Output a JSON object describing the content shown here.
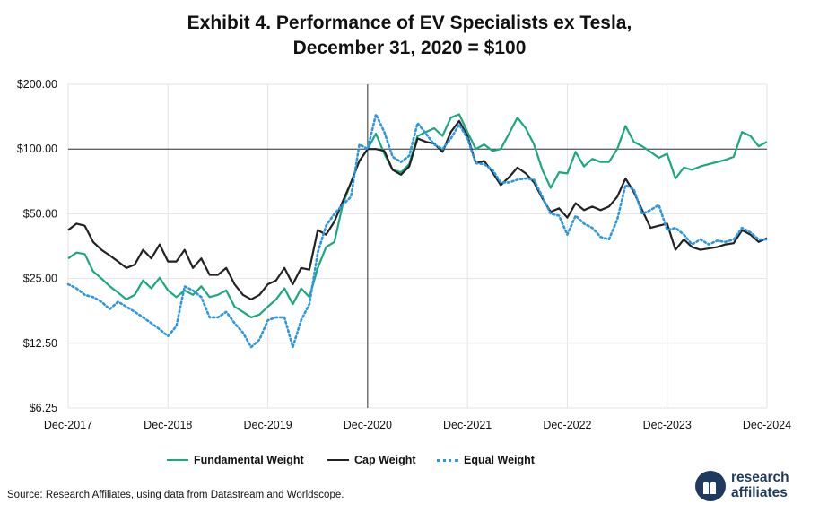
{
  "chart_data": {
    "type": "line",
    "title": "Exhibit 4. Performance of EV Specialists ex Tesla,",
    "subtitle": "December 31, 2020 = $100",
    "y_scale": "log2",
    "ylim": [
      6.25,
      200
    ],
    "y_ticks": [
      "$200.00",
      "$100.00",
      "$50.00",
      "$25.00",
      "$12.50",
      "$6.25"
    ],
    "y_tick_values": [
      200,
      100,
      50,
      25,
      12.5,
      6.25
    ],
    "x_ticks": [
      "Dec-2017",
      "Dec-2018",
      "Dec-2019",
      "Dec-2020",
      "Dec-2021",
      "Dec-2022",
      "Dec-2023",
      "Dec-2024"
    ],
    "x_range": [
      "Dec-2017",
      "Dec-2024"
    ],
    "x_unit": "months",
    "reference_lines": {
      "vertical_at": "Dec-2020",
      "horizontal_at": 100
    },
    "grid": true,
    "legend_position": "bottom",
    "series": [
      {
        "name": "Fundamental Weight",
        "color": "#1aa87e",
        "style": "solid",
        "points": [
          [
            0,
            31
          ],
          [
            1,
            33
          ],
          [
            2,
            32.5
          ],
          [
            3,
            27
          ],
          [
            4,
            25
          ],
          [
            5,
            23
          ],
          [
            6,
            21.5
          ],
          [
            7,
            20
          ],
          [
            8,
            21
          ],
          [
            9,
            24.5
          ],
          [
            10,
            22.5
          ],
          [
            11,
            25.2
          ],
          [
            12,
            22
          ],
          [
            13,
            20.5
          ],
          [
            14,
            22
          ],
          [
            15,
            21
          ],
          [
            16,
            23
          ],
          [
            17,
            20.5
          ],
          [
            18,
            21
          ],
          [
            19,
            22
          ],
          [
            20,
            18.5
          ],
          [
            21,
            17.5
          ],
          [
            22,
            16.5
          ],
          [
            23,
            17
          ],
          [
            24,
            18.5
          ],
          [
            25,
            20
          ],
          [
            26,
            22.5
          ],
          [
            27,
            19
          ],
          [
            28,
            22.5
          ],
          [
            29,
            20.5
          ],
          [
            30,
            28
          ],
          [
            31,
            35
          ],
          [
            32,
            37
          ],
          [
            33,
            55
          ],
          [
            34,
            70
          ],
          [
            35,
            88
          ],
          [
            36,
            100
          ],
          [
            37,
            118
          ],
          [
            38,
            95
          ],
          [
            39,
            80
          ],
          [
            40,
            78
          ],
          [
            41,
            85
          ],
          [
            42,
            115
          ],
          [
            43,
            120
          ],
          [
            44,
            125
          ],
          [
            45,
            115
          ],
          [
            46,
            140
          ],
          [
            47,
            145
          ],
          [
            48,
            120
          ],
          [
            49,
            100
          ],
          [
            50,
            105
          ],
          [
            51,
            98
          ],
          [
            52,
            100
          ],
          [
            53,
            118
          ],
          [
            54,
            140
          ],
          [
            55,
            125
          ],
          [
            56,
            105
          ],
          [
            57,
            80
          ],
          [
            58,
            66
          ],
          [
            59,
            78
          ],
          [
            60,
            77
          ],
          [
            61,
            97
          ],
          [
            62,
            83
          ],
          [
            63,
            90
          ],
          [
            64,
            87
          ],
          [
            65,
            87
          ],
          [
            66,
            100
          ],
          [
            67,
            128
          ],
          [
            68,
            108
          ],
          [
            69,
            103
          ],
          [
            70,
            97
          ],
          [
            71,
            91
          ],
          [
            72,
            95
          ],
          [
            73,
            73
          ],
          [
            74,
            82
          ],
          [
            75,
            80
          ],
          [
            76,
            83
          ],
          [
            77,
            85
          ],
          [
            78,
            87
          ],
          [
            79,
            89
          ],
          [
            80,
            92
          ],
          [
            81,
            120
          ],
          [
            82,
            115
          ],
          [
            83,
            103
          ],
          [
            84,
            108
          ]
        ]
      },
      {
        "name": "Cap Weight",
        "color": "#222222",
        "style": "solid",
        "points": [
          [
            0,
            42
          ],
          [
            1,
            45
          ],
          [
            2,
            44
          ],
          [
            3,
            37
          ],
          [
            4,
            34
          ],
          [
            5,
            32
          ],
          [
            6,
            30
          ],
          [
            7,
            28
          ],
          [
            8,
            29
          ],
          [
            9,
            34
          ],
          [
            10,
            31
          ],
          [
            11,
            36
          ],
          [
            12,
            30
          ],
          [
            13,
            30
          ],
          [
            14,
            34
          ],
          [
            15,
            28
          ],
          [
            16,
            31
          ],
          [
            17,
            26
          ],
          [
            18,
            26
          ],
          [
            19,
            28
          ],
          [
            20,
            23.5
          ],
          [
            21,
            21
          ],
          [
            22,
            20
          ],
          [
            23,
            21
          ],
          [
            24,
            23.5
          ],
          [
            25,
            24.5
          ],
          [
            26,
            28
          ],
          [
            27,
            23.5
          ],
          [
            28,
            28
          ],
          [
            29,
            27.5
          ],
          [
            30,
            42
          ],
          [
            31,
            40
          ],
          [
            32,
            46
          ],
          [
            33,
            57
          ],
          [
            34,
            70
          ],
          [
            35,
            88
          ],
          [
            36,
            100
          ],
          [
            37,
            100
          ],
          [
            38,
            98
          ],
          [
            39,
            80
          ],
          [
            40,
            76
          ],
          [
            41,
            83
          ],
          [
            42,
            112
          ],
          [
            43,
            108
          ],
          [
            44,
            106
          ],
          [
            45,
            97
          ],
          [
            46,
            120
          ],
          [
            47,
            135
          ],
          [
            48,
            115
          ],
          [
            49,
            86
          ],
          [
            50,
            88
          ],
          [
            51,
            78
          ],
          [
            52,
            68
          ],
          [
            53,
            74
          ],
          [
            54,
            82
          ],
          [
            55,
            77
          ],
          [
            56,
            70
          ],
          [
            57,
            59
          ],
          [
            58,
            51
          ],
          [
            59,
            53
          ],
          [
            60,
            48
          ],
          [
            61,
            56
          ],
          [
            62,
            52
          ],
          [
            63,
            54
          ],
          [
            64,
            52
          ],
          [
            65,
            54
          ],
          [
            66,
            60
          ],
          [
            67,
            73
          ],
          [
            68,
            63
          ],
          [
            69,
            52
          ],
          [
            70,
            43
          ],
          [
            71,
            44
          ],
          [
            72,
            45
          ],
          [
            73,
            34
          ],
          [
            74,
            38
          ],
          [
            75,
            35
          ],
          [
            76,
            34
          ],
          [
            77,
            34.5
          ],
          [
            78,
            35
          ],
          [
            79,
            36
          ],
          [
            80,
            36.5
          ],
          [
            81,
            42
          ],
          [
            82,
            40
          ],
          [
            83,
            37
          ],
          [
            84,
            38.5
          ]
        ]
      },
      {
        "name": "Equal Weight",
        "color": "#2f97dd",
        "style": "dotted",
        "points": [
          [
            0,
            23.5
          ],
          [
            1,
            22.5
          ],
          [
            2,
            21
          ],
          [
            3,
            20.5
          ],
          [
            4,
            19.5
          ],
          [
            5,
            18
          ],
          [
            6,
            19.5
          ],
          [
            7,
            18.5
          ],
          [
            8,
            17.5
          ],
          [
            9,
            16.5
          ],
          [
            10,
            15.5
          ],
          [
            11,
            14.5
          ],
          [
            12,
            13.5
          ],
          [
            13,
            15
          ],
          [
            14,
            23
          ],
          [
            15,
            22
          ],
          [
            16,
            20.5
          ],
          [
            17,
            16.5
          ],
          [
            18,
            16.5
          ],
          [
            19,
            17.5
          ],
          [
            20,
            15.5
          ],
          [
            21,
            14
          ],
          [
            22,
            12
          ],
          [
            23,
            13
          ],
          [
            24,
            16
          ],
          [
            25,
            16.5
          ],
          [
            26,
            16.5
          ],
          [
            27,
            12
          ],
          [
            28,
            16
          ],
          [
            29,
            19
          ],
          [
            30,
            33
          ],
          [
            31,
            44
          ],
          [
            32,
            50
          ],
          [
            33,
            55
          ],
          [
            34,
            60
          ],
          [
            35,
            105
          ],
          [
            36,
            100
          ],
          [
            37,
            145
          ],
          [
            38,
            120
          ],
          [
            39,
            92
          ],
          [
            40,
            87
          ],
          [
            41,
            93
          ],
          [
            42,
            132
          ],
          [
            43,
            118
          ],
          [
            44,
            105
          ],
          [
            45,
            100
          ],
          [
            46,
            112
          ],
          [
            47,
            130
          ],
          [
            48,
            112
          ],
          [
            49,
            86
          ],
          [
            50,
            85
          ],
          [
            51,
            80
          ],
          [
            52,
            70
          ],
          [
            53,
            70
          ],
          [
            54,
            72
          ],
          [
            55,
            73
          ],
          [
            56,
            72
          ],
          [
            57,
            60
          ],
          [
            58,
            50
          ],
          [
            59,
            49
          ],
          [
            60,
            40
          ],
          [
            61,
            49
          ],
          [
            62,
            45
          ],
          [
            63,
            43
          ],
          [
            64,
            39
          ],
          [
            65,
            38
          ],
          [
            66,
            47
          ],
          [
            67,
            68
          ],
          [
            68,
            65
          ],
          [
            69,
            50
          ],
          [
            70,
            52
          ],
          [
            71,
            55
          ],
          [
            72,
            42
          ],
          [
            73,
            43
          ],
          [
            74,
            40
          ],
          [
            75,
            36
          ],
          [
            76,
            38
          ],
          [
            77,
            36
          ],
          [
            78,
            37.5
          ],
          [
            79,
            37
          ],
          [
            80,
            38
          ],
          [
            81,
            43
          ],
          [
            82,
            41
          ],
          [
            83,
            38
          ],
          [
            84,
            38
          ]
        ]
      }
    ],
    "source": "Source: Research Affiliates, using data from Datastream and Worldscope.",
    "logo_text": [
      "research",
      "affiliates"
    ]
  }
}
